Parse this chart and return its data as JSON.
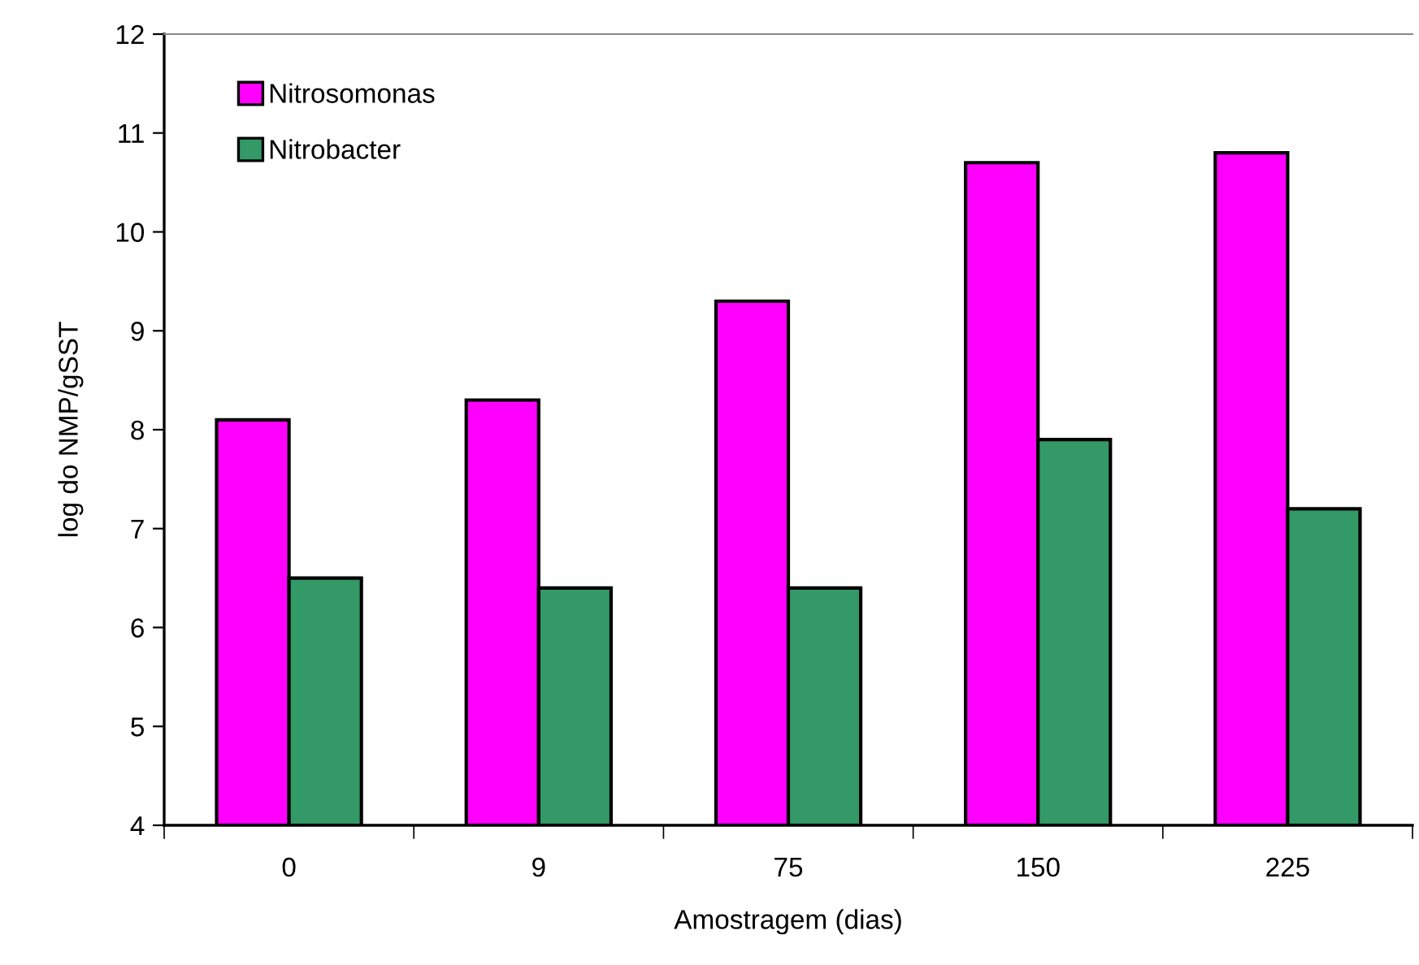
{
  "chart_data": {
    "type": "bar",
    "xlabel": "Amostragem (dias)",
    "ylabel": "log do NMP/gSST",
    "categories": [
      "0",
      "9",
      "75",
      "150",
      "225"
    ],
    "series": [
      {
        "name": "Nitrosomonas",
        "color": "#ff00ff",
        "values": [
          8.1,
          8.3,
          9.3,
          10.7,
          10.8
        ]
      },
      {
        "name": "Nitrobacter",
        "color": "#339966",
        "values": [
          6.5,
          6.4,
          6.4,
          7.9,
          7.2
        ]
      }
    ],
    "ylim": [
      4,
      12
    ],
    "yticks": [
      4,
      5,
      6,
      7,
      8,
      9,
      10,
      11,
      12
    ],
    "grid": false,
    "legend": "top left"
  }
}
